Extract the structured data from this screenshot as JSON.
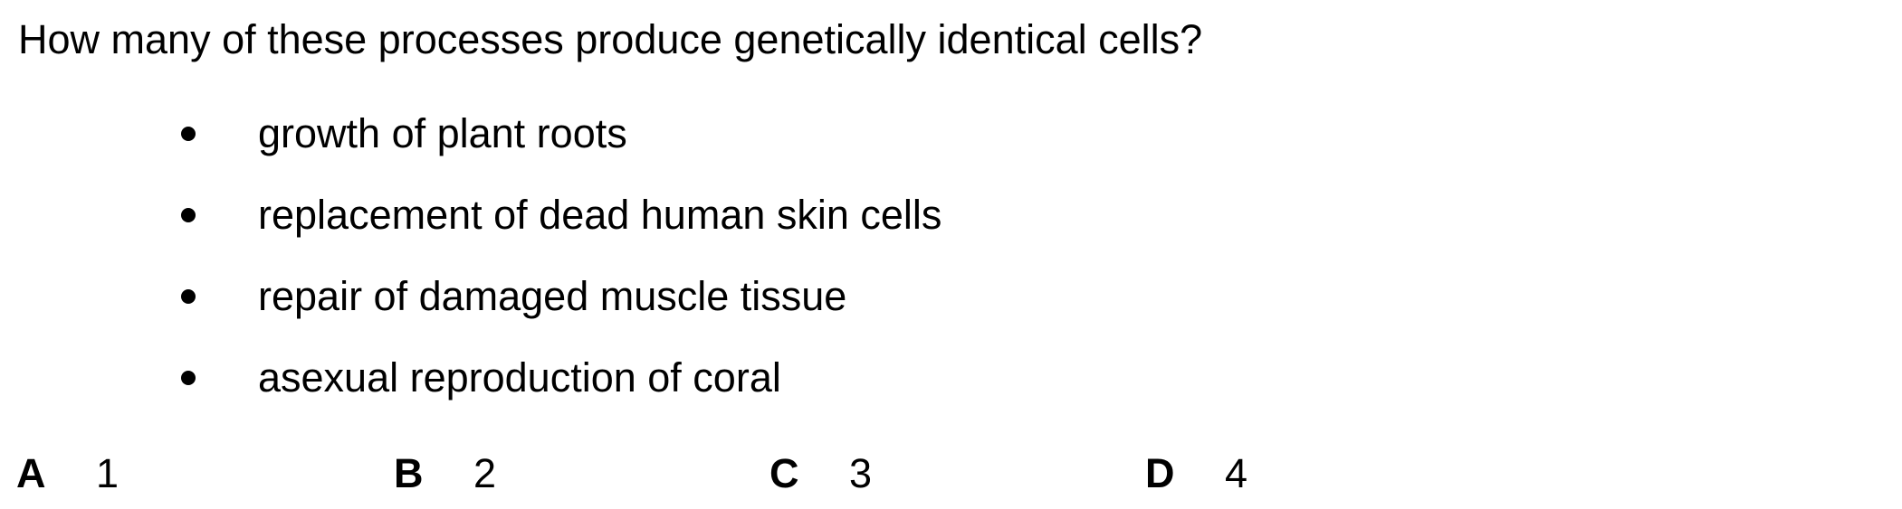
{
  "question": {
    "text": "How many of these processes produce genetically identical cells?"
  },
  "items": [
    {
      "text": "growth of plant roots"
    },
    {
      "text": "replacement of dead human skin cells"
    },
    {
      "text": "repair of damaged muscle tissue"
    },
    {
      "text": "asexual reproduction of coral"
    }
  ],
  "options": [
    {
      "letter": "A",
      "value": "1"
    },
    {
      "letter": "B",
      "value": "2"
    },
    {
      "letter": "C",
      "value": "3"
    },
    {
      "letter": "D",
      "value": "4"
    }
  ]
}
